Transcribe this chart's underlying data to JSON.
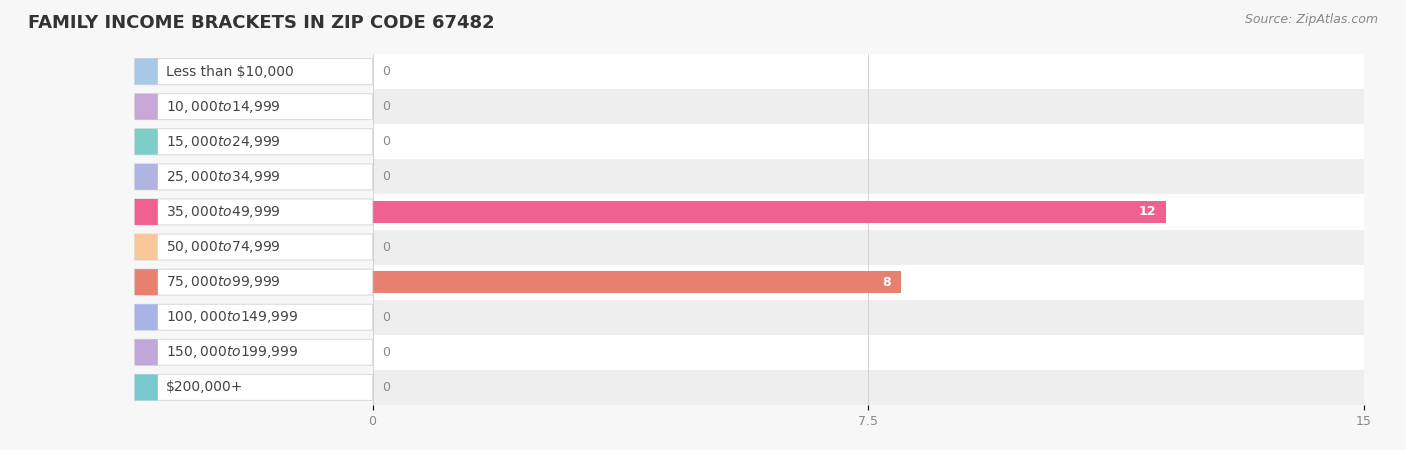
{
  "title": "FAMILY INCOME BRACKETS IN ZIP CODE 67482",
  "source": "Source: ZipAtlas.com",
  "categories": [
    "Less than $10,000",
    "$10,000 to $14,999",
    "$15,000 to $24,999",
    "$25,000 to $34,999",
    "$35,000 to $49,999",
    "$50,000 to $74,999",
    "$75,000 to $99,999",
    "$100,000 to $149,999",
    "$150,000 to $199,999",
    "$200,000+"
  ],
  "values": [
    0,
    0,
    0,
    0,
    12,
    0,
    8,
    0,
    0,
    0
  ],
  "bar_colors": [
    "#a8c8e8",
    "#c8a8d8",
    "#7ecec8",
    "#b0b4e0",
    "#f06090",
    "#f8c898",
    "#e88070",
    "#a8b4e8",
    "#c0a8d8",
    "#78c8d0"
  ],
  "bg_color": "#f7f7f7",
  "xlim": [
    0,
    15
  ],
  "xticks": [
    0,
    7.5,
    15
  ],
  "title_fontsize": 13,
  "label_fontsize": 10,
  "value_fontsize": 9
}
